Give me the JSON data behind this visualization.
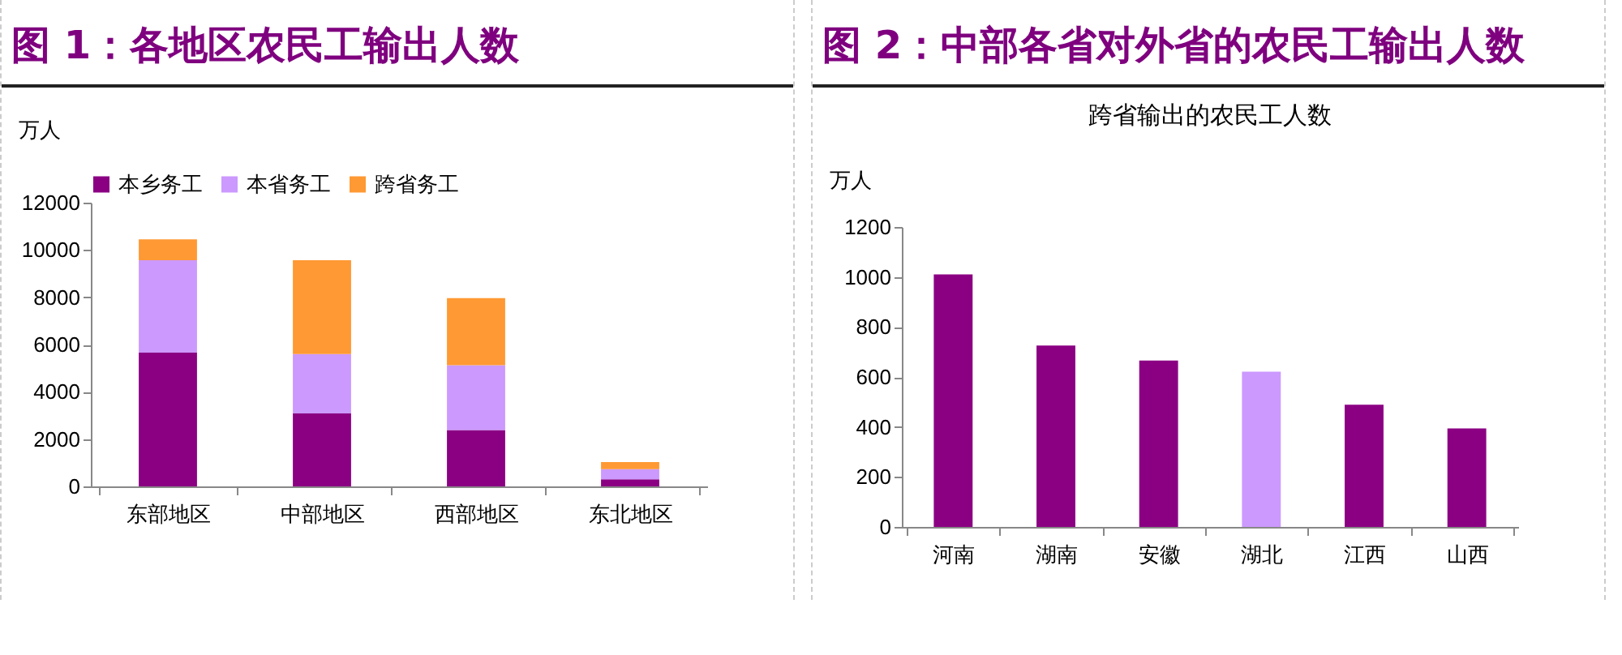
{
  "chart_data": [
    {
      "type": "bar",
      "title": "图 1：各地区农民工输出人数",
      "ylabel": "万人",
      "categories": [
        "东部地区",
        "中部地区",
        "西部地区",
        "东北地区"
      ],
      "stacked": true,
      "series": [
        {
          "name": "本乡务工",
          "color": "#8b0083",
          "values": [
            5660,
            3090,
            2380,
            300
          ]
        },
        {
          "name": "本省务工",
          "color": "#cc99ff",
          "values": [
            3910,
            2510,
            2750,
            430
          ]
        },
        {
          "name": "跨省务工",
          "color": "#ff9933",
          "values": [
            880,
            3970,
            2830,
            300
          ]
        }
      ],
      "ylim": [
        0,
        12000
      ],
      "yticks": [
        0,
        2000,
        4000,
        6000,
        8000,
        10000,
        12000
      ],
      "grid": false,
      "legend": "top"
    },
    {
      "type": "bar",
      "title": "图 2：中部各省对外省的农民工输出人数",
      "subtitle": "跨省输出的农民工人数",
      "ylabel": "万人",
      "categories": [
        "河南",
        "湖南",
        "安徽",
        "湖北",
        "江西",
        "山西"
      ],
      "values": [
        1010,
        726,
        666,
        621,
        489,
        394
      ],
      "colors": [
        "#8b0083",
        "#8b0083",
        "#8b0083",
        "#cc99ff",
        "#8b0083",
        "#8b0083"
      ],
      "ylim": [
        0,
        1200
      ],
      "yticks": [
        0,
        200,
        400,
        600,
        800,
        1000,
        1200
      ],
      "grid": false
    }
  ]
}
